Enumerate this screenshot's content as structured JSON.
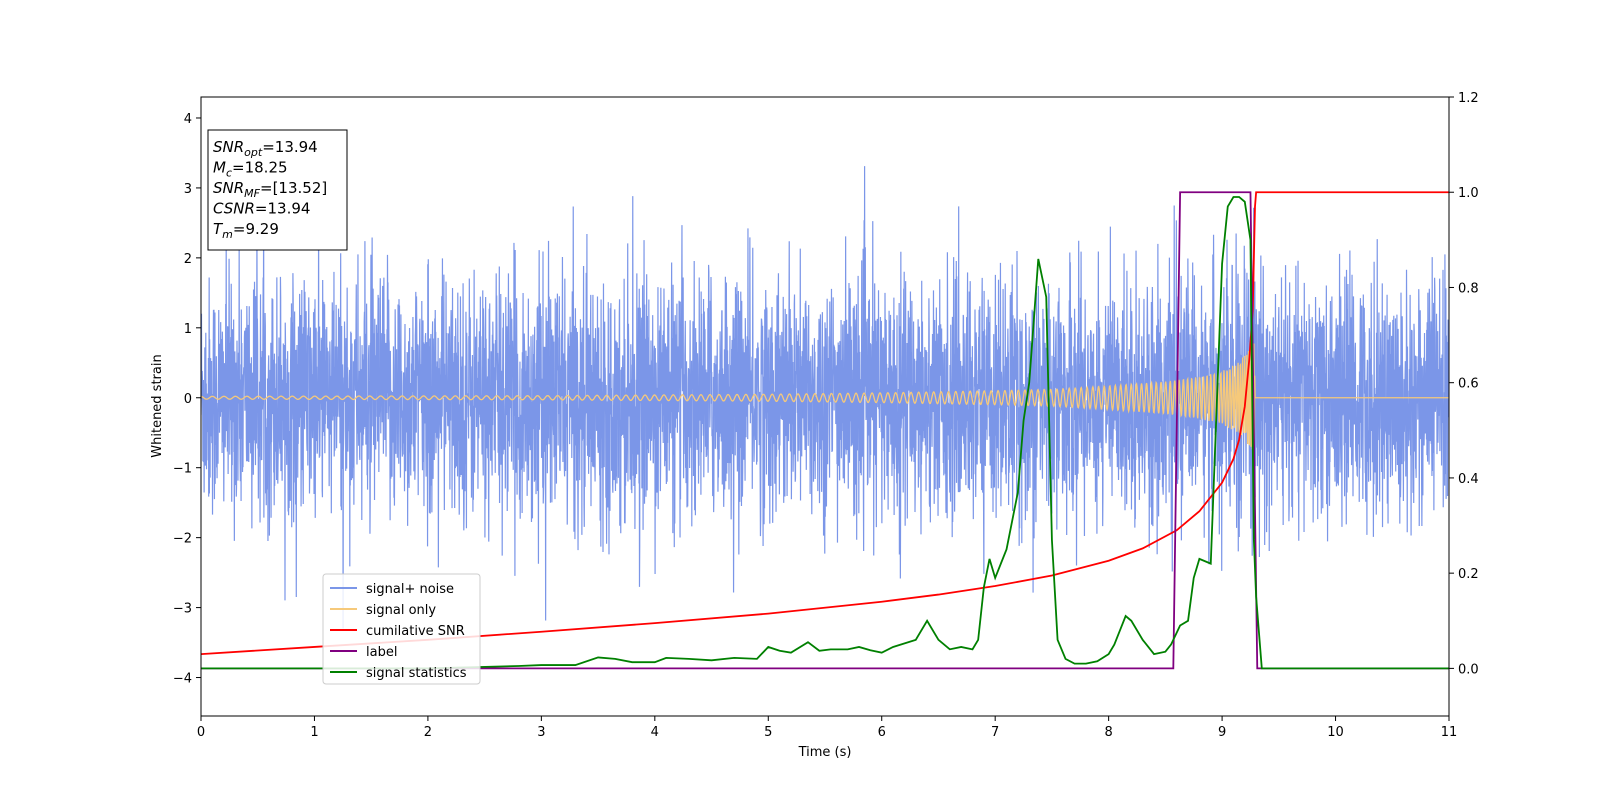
{
  "chart_data": {
    "type": "line",
    "xlabel": "Time (s)",
    "ylabel_left": "Whitened strain",
    "ylabel_right": "",
    "xlim": [
      0,
      11
    ],
    "ylim_left": [
      -4.55,
      4.3
    ],
    "ylim_right": [
      -0.1,
      1.2
    ],
    "x_ticks": [
      "0",
      "1",
      "2",
      "3",
      "4",
      "5",
      "6",
      "7",
      "8",
      "9",
      "10",
      "11"
    ],
    "y_left_ticks": [
      "−4",
      "−3",
      "−2",
      "−1",
      "0",
      "1",
      "2",
      "3",
      "4"
    ],
    "y_right_ticks": [
      "0.0",
      "0.2",
      "0.4",
      "0.6",
      "0.8",
      "1.0",
      "1.2"
    ],
    "grid": false,
    "legend_position": "lower-left",
    "info_box": {
      "lines": [
        {
          "sym": "SNR",
          "sub": "opt",
          "val": "=13.94"
        },
        {
          "sym": "M",
          "sub": "c",
          "val": "=18.25"
        },
        {
          "sym": "SNR",
          "sub": "MF",
          "val": "=[13.52]"
        },
        {
          "sym": "CSNR",
          "sub": "",
          "val": "=13.94"
        },
        {
          "sym": "T",
          "sub": "m",
          "val": "=9.29"
        }
      ]
    },
    "series": [
      {
        "name": "signal+ noise",
        "axis": "left",
        "color": "#7b96e8",
        "description_values": {
          "noise_sigma": 0.85,
          "t_start": 0,
          "t_end": 11
        }
      },
      {
        "name": "signal only",
        "axis": "left",
        "color": "#f6c97a",
        "amplitude_points": {
          "x": [
            0,
            3,
            5,
            6,
            7,
            7.5,
            8,
            8.5,
            8.8,
            9.0,
            9.1,
            9.2,
            9.25,
            9.29
          ],
          "y": [
            0.02,
            0.03,
            0.05,
            0.07,
            0.1,
            0.12,
            0.17,
            0.23,
            0.3,
            0.38,
            0.47,
            0.6,
            0.72,
            0.8
          ]
        },
        "merger_time": 9.29
      },
      {
        "name": "cumilative SNR",
        "axis": "right",
        "color": "#ff0000",
        "x": [
          0,
          1,
          2,
          3,
          4,
          5,
          6,
          6.5,
          7,
          7.5,
          8,
          8.3,
          8.6,
          8.8,
          9.0,
          9.1,
          9.15,
          9.2,
          9.24,
          9.27,
          9.29,
          9.3,
          11
        ],
        "y": [
          0.03,
          0.045,
          0.06,
          0.077,
          0.095,
          0.115,
          0.14,
          0.155,
          0.173,
          0.195,
          0.226,
          0.252,
          0.29,
          0.33,
          0.39,
          0.44,
          0.48,
          0.55,
          0.65,
          0.75,
          0.97,
          1.0,
          1.0
        ]
      },
      {
        "name": "label",
        "axis": "right",
        "color": "#800080",
        "x": [
          0,
          8.57,
          8.63,
          9.25,
          9.31,
          11
        ],
        "y": [
          0,
          0,
          1,
          1,
          0,
          0
        ]
      },
      {
        "name": "signal statistics",
        "axis": "right",
        "color": "#008000",
        "x": [
          0,
          1,
          2,
          2.8,
          3.0,
          3.3,
          3.5,
          3.65,
          3.8,
          4.0,
          4.1,
          4.3,
          4.5,
          4.7,
          4.9,
          5.0,
          5.1,
          5.2,
          5.35,
          5.45,
          5.55,
          5.7,
          5.8,
          5.9,
          6.0,
          6.1,
          6.3,
          6.4,
          6.5,
          6.6,
          6.7,
          6.8,
          6.85,
          6.9,
          6.95,
          7.0,
          7.05,
          7.1,
          7.2,
          7.25,
          7.3,
          7.38,
          7.45,
          7.5,
          7.55,
          7.62,
          7.7,
          7.8,
          7.9,
          8.0,
          8.05,
          8.1,
          8.15,
          8.2,
          8.3,
          8.4,
          8.5,
          8.55,
          8.63,
          8.7,
          8.75,
          8.8,
          8.9,
          9.0,
          9.05,
          9.1,
          9.15,
          9.2,
          9.25,
          9.28,
          9.3,
          9.35,
          11
        ],
        "y": [
          0.0,
          0.0,
          0.0,
          0.005,
          0.007,
          0.007,
          0.023,
          0.02,
          0.013,
          0.013,
          0.022,
          0.02,
          0.017,
          0.022,
          0.02,
          0.045,
          0.037,
          0.033,
          0.055,
          0.037,
          0.04,
          0.04,
          0.045,
          0.038,
          0.033,
          0.045,
          0.06,
          0.1,
          0.06,
          0.04,
          0.045,
          0.04,
          0.06,
          0.17,
          0.23,
          0.19,
          0.22,
          0.25,
          0.37,
          0.52,
          0.6,
          0.86,
          0.78,
          0.27,
          0.06,
          0.02,
          0.01,
          0.01,
          0.015,
          0.03,
          0.05,
          0.08,
          0.11,
          0.1,
          0.06,
          0.03,
          0.035,
          0.05,
          0.09,
          0.1,
          0.19,
          0.23,
          0.22,
          0.85,
          0.97,
          0.99,
          0.99,
          0.98,
          0.9,
          0.27,
          0.15,
          0.0,
          0.0
        ]
      }
    ]
  }
}
